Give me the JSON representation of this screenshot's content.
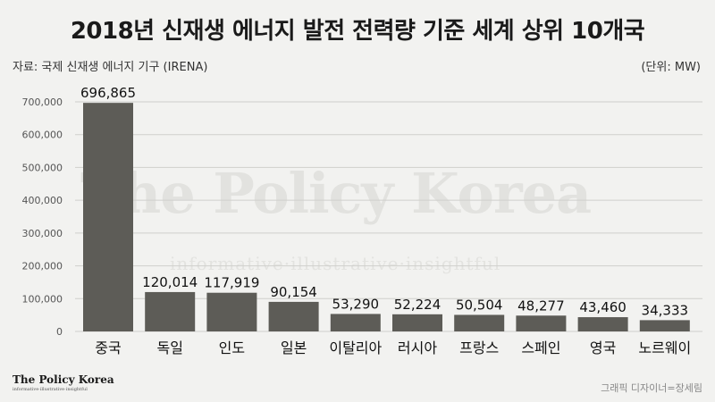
{
  "header": {
    "title": "2018년 신재생 에너지 발전 전력량 기준 세계 상위 10개국",
    "source": "자료: 국제 신재생 에너지 기구 (IRENA)",
    "unit": "(단위: MW)"
  },
  "watermark": {
    "text": "The Policy Korea",
    "sub": "informative·illustrative·insightful"
  },
  "footer": {
    "logo": "The Policy Korea",
    "logo_sub": "informative·illustrative·insightful",
    "credit": "그래픽 디자이너=장세림"
  },
  "colors": {
    "bar": "#5d5c57",
    "grid": "#cfcfcc",
    "tick": "#555555",
    "label": "#111111"
  },
  "chart_data": {
    "type": "bar",
    "categories": [
      "중국",
      "독일",
      "인도",
      "일본",
      "이탈리아",
      "러시아",
      "프랑스",
      "스페인",
      "영국",
      "노르웨이"
    ],
    "values": [
      696865,
      120014,
      117919,
      90154,
      53290,
      52224,
      50504,
      48277,
      43460,
      34333
    ],
    "value_labels": [
      "696,865",
      "120,014",
      "117,919",
      "90,154",
      "53,290",
      "52,224",
      "50,504",
      "48,277",
      "43,460",
      "34,333"
    ],
    "yticks": [
      0,
      100000,
      200000,
      300000,
      400000,
      500000,
      600000,
      700000
    ],
    "ytick_labels": [
      "0",
      "100,000",
      "200,000",
      "300,000",
      "400,000",
      "500,000",
      "600,000",
      "700,000"
    ],
    "ylim": [
      0,
      700000
    ],
    "grid": true,
    "xlabel": "",
    "ylabel": ""
  }
}
